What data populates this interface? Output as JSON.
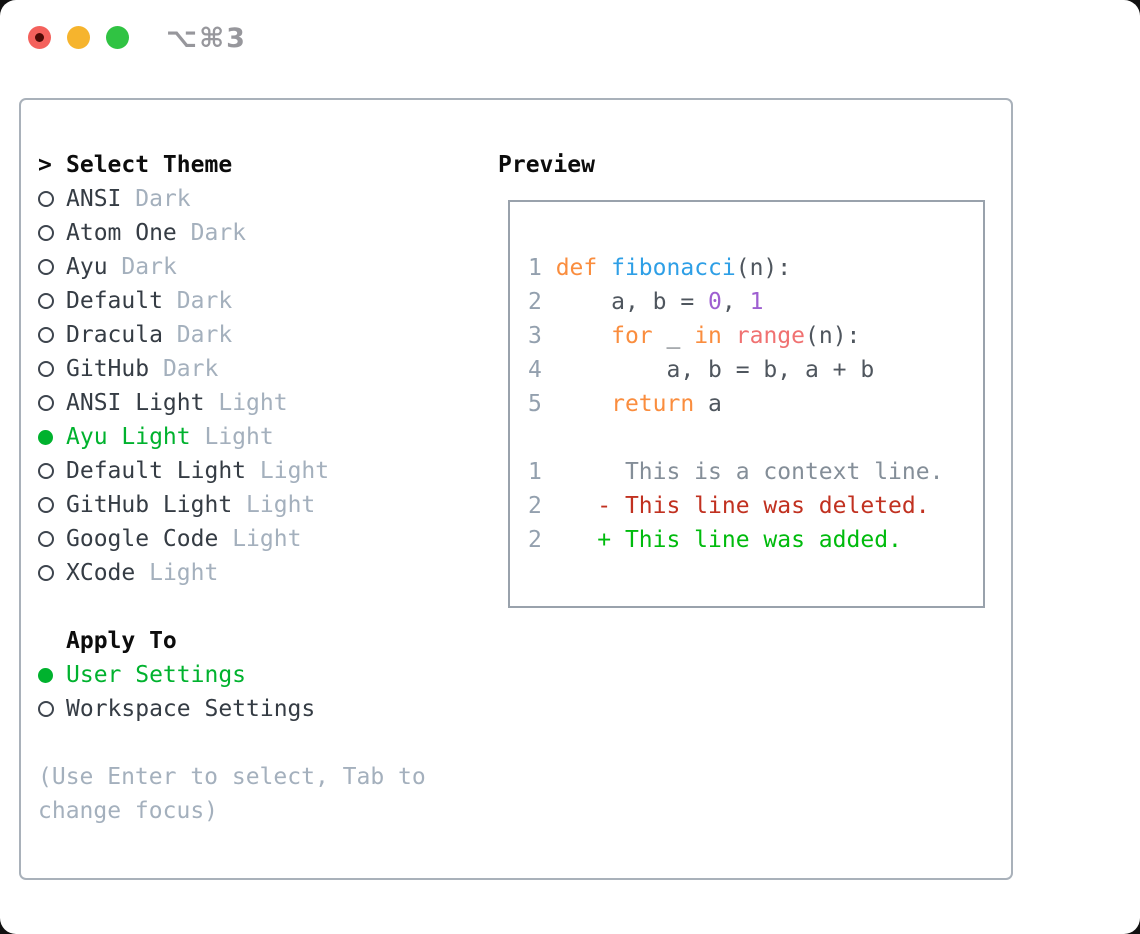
{
  "titlebar": {
    "shortcut": "⌥⌘3"
  },
  "theme_picker": {
    "prompt": ">",
    "title": "Select Theme",
    "items": [
      {
        "label": "ANSI",
        "variant": "Dark",
        "selected": false
      },
      {
        "label": "Atom One",
        "variant": "Dark",
        "selected": false
      },
      {
        "label": "Ayu",
        "variant": "Dark",
        "selected": false
      },
      {
        "label": "Default",
        "variant": "Dark",
        "selected": false
      },
      {
        "label": "Dracula",
        "variant": "Dark",
        "selected": false
      },
      {
        "label": "GitHub",
        "variant": "Dark",
        "selected": false
      },
      {
        "label": "ANSI Light",
        "variant": "Light",
        "selected": false
      },
      {
        "label": "Ayu Light",
        "variant": "Light",
        "selected": true
      },
      {
        "label": "Default Light",
        "variant": "Light",
        "selected": false
      },
      {
        "label": "GitHub Light",
        "variant": "Light",
        "selected": false
      },
      {
        "label": "Google Code",
        "variant": "Light",
        "selected": false
      },
      {
        "label": "XCode",
        "variant": "Light",
        "selected": false
      }
    ],
    "apply_to": {
      "title": "Apply To",
      "options": [
        {
          "label": "User Settings",
          "selected": true
        },
        {
          "label": "Workspace Settings",
          "selected": false
        }
      ]
    },
    "hint": "(Use Enter to select, Tab to change focus)"
  },
  "preview": {
    "title": "Preview",
    "lines": [
      {
        "num": "1",
        "tokens": [
          [
            "kw",
            "def"
          ],
          [
            "pl",
            " "
          ],
          [
            "fn",
            "fibonacci"
          ],
          [
            "pl",
            "(n):"
          ]
        ]
      },
      {
        "num": "2",
        "tokens": [
          [
            "pl",
            "    a, b = "
          ],
          [
            "nm",
            "0"
          ],
          [
            "pl",
            ", "
          ],
          [
            "nm",
            "1"
          ]
        ]
      },
      {
        "num": "3",
        "tokens": [
          [
            "pl",
            "    "
          ],
          [
            "kw",
            "for"
          ],
          [
            "pl",
            " _ "
          ],
          [
            "kw",
            "in"
          ],
          [
            "pl",
            " "
          ],
          [
            "sp",
            "range"
          ],
          [
            "pl",
            "(n):"
          ]
        ]
      },
      {
        "num": "4",
        "tokens": [
          [
            "pl",
            "        a, b = b, a + b"
          ]
        ]
      },
      {
        "num": "5",
        "tokens": [
          [
            "pl",
            "    "
          ],
          [
            "kw",
            "return"
          ],
          [
            "pl",
            " a"
          ]
        ]
      },
      {
        "num": "",
        "tokens": []
      },
      {
        "num": "1",
        "tokens": [
          [
            "ctx",
            "     This is a context line."
          ]
        ]
      },
      {
        "num": "2",
        "tokens": [
          [
            "del",
            "   - This line was deleted."
          ]
        ]
      },
      {
        "num": "2",
        "tokens": [
          [
            "add",
            "   + This line was added."
          ]
        ]
      }
    ]
  },
  "colors": {
    "selection_green": "#00b22e",
    "added_green": "#00bb0d",
    "deleted_red": "#c13120",
    "keyword_orange": "#fa8d3e",
    "function_blue": "#2e9fe6",
    "number_purple": "#9e5fd1",
    "builtin_coral": "#f07171"
  }
}
